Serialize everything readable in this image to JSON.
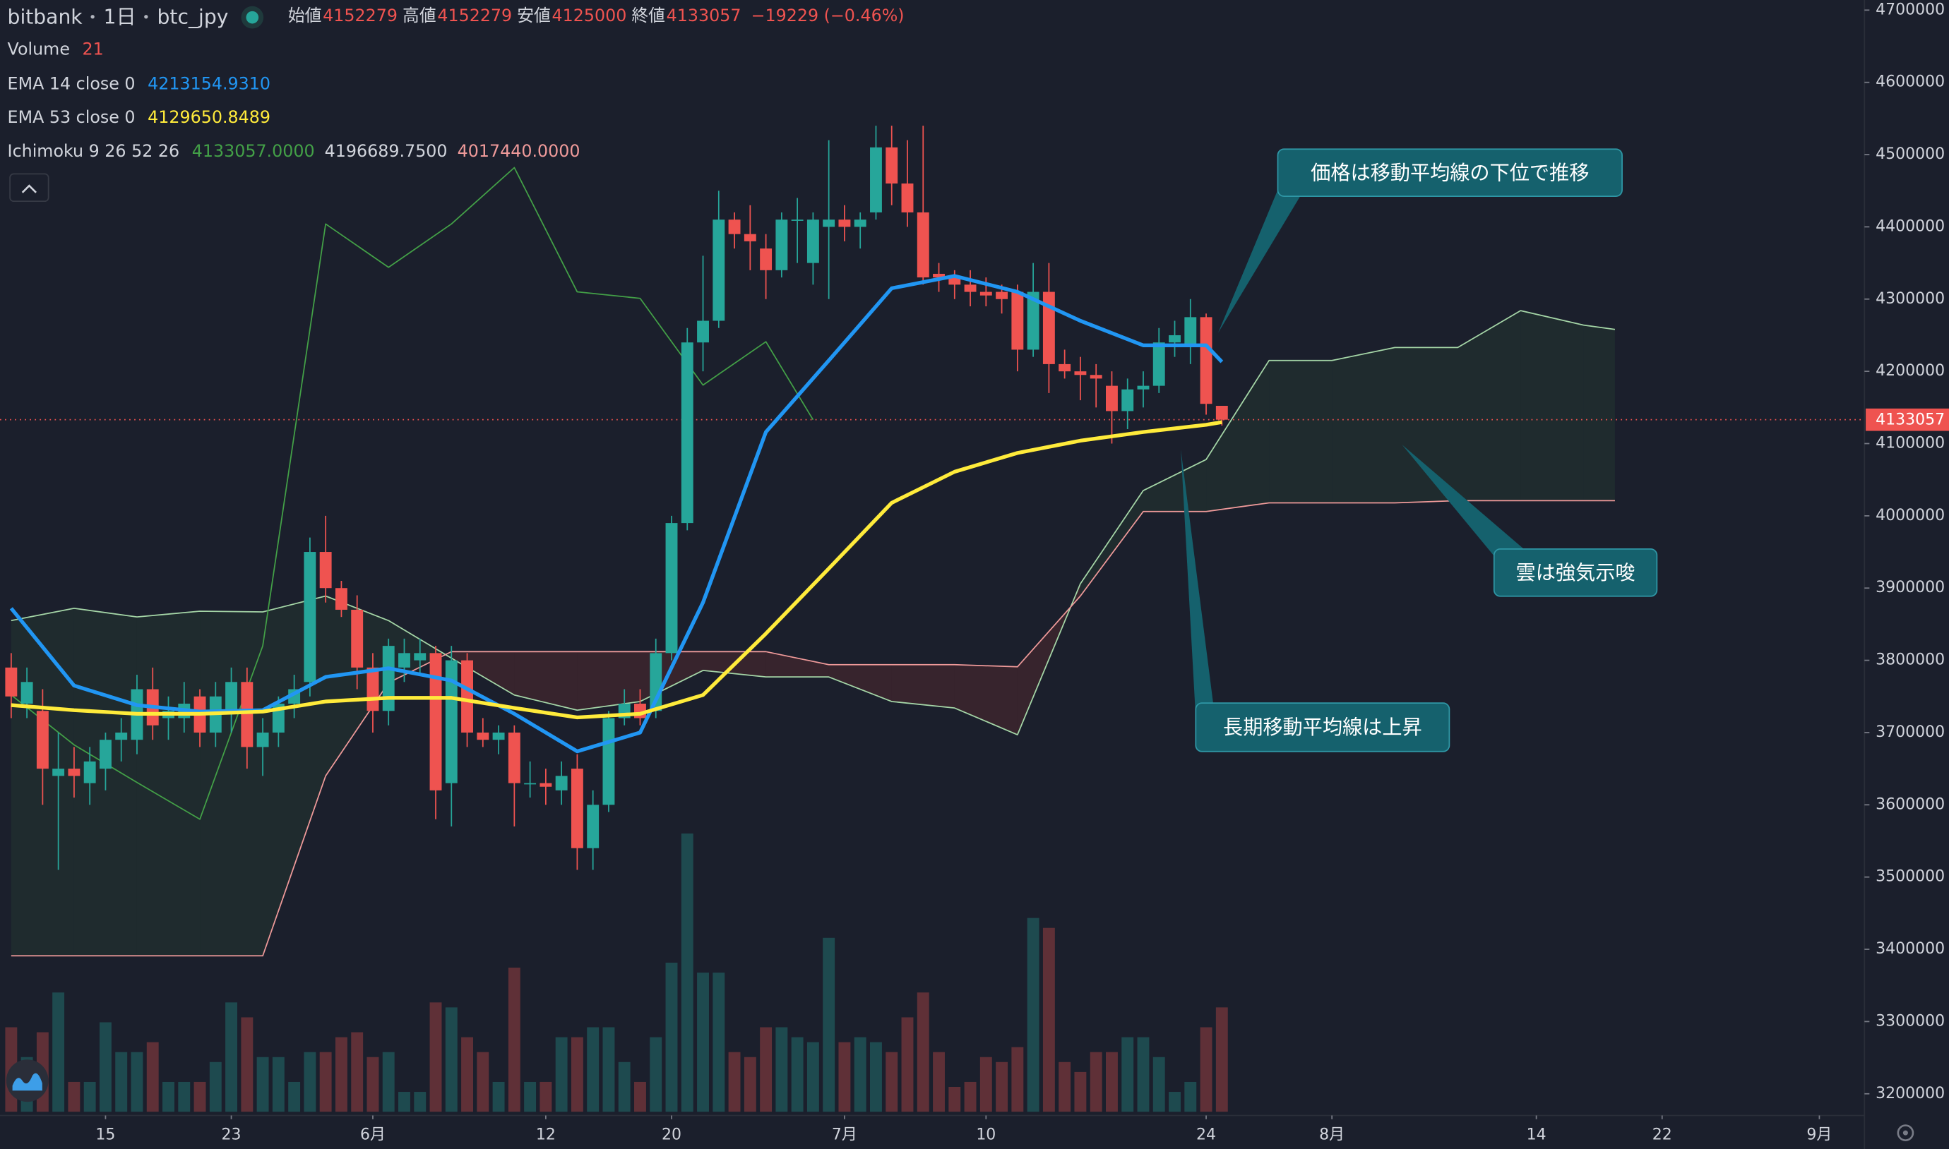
{
  "header": {
    "exchange": "bitbank",
    "interval": "1日",
    "symbol": "btc_jpy",
    "ohlc_labels": [
      "始値",
      "高値",
      "安値",
      "終値"
    ],
    "change": "−19229 (−0.46%)",
    "volume_label": "Volume"
  },
  "chart_data": {
    "type": "candlestick",
    "x": [
      "05-09",
      "05-10",
      "05-11",
      "05-12",
      "05-13",
      "05-14",
      "05-15",
      "05-16",
      "05-17",
      "05-18",
      "05-19",
      "05-20",
      "05-21",
      "05-22",
      "05-23",
      "05-24",
      "05-25",
      "05-26",
      "05-27",
      "05-28",
      "05-29",
      "05-30",
      "05-31",
      "06-01",
      "06-02",
      "06-03",
      "06-04",
      "06-05",
      "06-06",
      "06-07",
      "06-08",
      "06-09",
      "06-10",
      "06-11",
      "06-12",
      "06-13",
      "06-14",
      "06-15",
      "06-16",
      "06-17",
      "06-18",
      "06-19",
      "06-20",
      "06-21",
      "06-22",
      "06-23",
      "06-24",
      "06-25",
      "06-26",
      "06-27",
      "06-28",
      "06-29",
      "06-30",
      "07-01",
      "07-02",
      "07-03",
      "07-04",
      "07-05",
      "07-06",
      "07-07",
      "07-08",
      "07-09",
      "07-10",
      "07-11",
      "07-12",
      "07-13",
      "07-14",
      "07-15",
      "07-16",
      "07-17",
      "07-18",
      "07-19",
      "07-20",
      "07-21",
      "07-22",
      "07-23",
      "07-24",
      "07-25"
    ],
    "open": [
      3790000,
      3740000,
      3730000,
      3640000,
      3650000,
      3630000,
      3650000,
      3690000,
      3690000,
      3760000,
      3720000,
      3720000,
      3750000,
      3700000,
      3730000,
      3770000,
      3680000,
      3700000,
      3740000,
      3770000,
      3950000,
      3900000,
      3870000,
      3790000,
      3730000,
      3790000,
      3800000,
      3810000,
      3630000,
      3800000,
      3700000,
      3690000,
      3700000,
      3630000,
      3630000,
      3620000,
      3650000,
      3540000,
      3600000,
      3720000,
      3740000,
      3730000,
      3810000,
      3990000,
      4240000,
      4270000,
      4410000,
      4390000,
      4370000,
      4340000,
      4410000,
      4350000,
      4400000,
      4410000,
      4400000,
      4420000,
      4510000,
      4460000,
      4420000,
      4335000,
      4330000,
      4320000,
      4310000,
      4310000,
      4310000,
      4230000,
      4310000,
      4210000,
      4200000,
      4195000,
      4180000,
      4145000,
      4175000,
      4180000,
      4240000,
      4235000,
      4275000,
      4152279
    ],
    "high": [
      3810000,
      3790000,
      3760000,
      3700000,
      3680000,
      3680000,
      3700000,
      3720000,
      3780000,
      3790000,
      3750000,
      3770000,
      3760000,
      3770000,
      3790000,
      3790000,
      3720000,
      3750000,
      3780000,
      3970000,
      4000000,
      3910000,
      3890000,
      3810000,
      3830000,
      3830000,
      3830000,
      3820000,
      3820000,
      3810000,
      3720000,
      3710000,
      3710000,
      3660000,
      3650000,
      3660000,
      3670000,
      3620000,
      3730000,
      3760000,
      3760000,
      3830000,
      4000000,
      4260000,
      4360000,
      4450000,
      4420000,
      4430000,
      4390000,
      4420000,
      4440000,
      4420000,
      4520000,
      4430000,
      4420000,
      4540000,
      4540000,
      4520000,
      4540000,
      4350000,
      4340000,
      4340000,
      4330000,
      4320000,
      4320000,
      4350000,
      4350000,
      4230000,
      4220000,
      4210000,
      4200000,
      4190000,
      4200000,
      4260000,
      4270000,
      4300000,
      4280000,
      4152279
    ],
    "low": [
      3720000,
      3720000,
      3600000,
      3510000,
      3610000,
      3600000,
      3620000,
      3660000,
      3670000,
      3690000,
      3690000,
      3700000,
      3680000,
      3680000,
      3700000,
      3650000,
      3640000,
      3680000,
      3720000,
      3750000,
      3880000,
      3860000,
      3760000,
      3700000,
      3710000,
      3770000,
      3780000,
      3580000,
      3570000,
      3680000,
      3680000,
      3670000,
      3570000,
      3610000,
      3600000,
      3600000,
      3510000,
      3510000,
      3590000,
      3710000,
      3710000,
      3720000,
      3800000,
      3980000,
      4200000,
      4260000,
      4370000,
      4340000,
      4300000,
      4330000,
      4350000,
      4320000,
      4300000,
      4380000,
      4370000,
      4410000,
      4430000,
      4400000,
      4320000,
      4310000,
      4300000,
      4290000,
      4290000,
      4280000,
      4200000,
      4220000,
      4170000,
      4190000,
      4160000,
      4150000,
      4100000,
      4120000,
      4150000,
      4170000,
      4220000,
      4210000,
      4140000,
      4125000
    ],
    "close": [
      3750000,
      3770000,
      3650000,
      3650000,
      3640000,
      3660000,
      3690000,
      3700000,
      3760000,
      3710000,
      3730000,
      3740000,
      3700000,
      3750000,
      3770000,
      3680000,
      3700000,
      3740000,
      3760000,
      3950000,
      3900000,
      3870000,
      3790000,
      3730000,
      3820000,
      3810000,
      3810000,
      3620000,
      3800000,
      3700000,
      3690000,
      3700000,
      3630000,
      3630000,
      3625000,
      3640000,
      3540000,
      3600000,
      3720000,
      3740000,
      3720000,
      3810000,
      3990000,
      4240000,
      4270000,
      4410000,
      4390000,
      4380000,
      4340000,
      4410000,
      4410000,
      4410000,
      4410000,
      4400000,
      4410000,
      4510000,
      4460000,
      4420000,
      4330000,
      4330000,
      4320000,
      4310000,
      4305000,
      4300000,
      4230000,
      4310000,
      4210000,
      4200000,
      4195000,
      4190000,
      4145000,
      4175000,
      4180000,
      4240000,
      4250000,
      4275000,
      4155000,
      4133057
    ],
    "volume": [
      17,
      11,
      16,
      24,
      6,
      6,
      18,
      12,
      12,
      14,
      6,
      6,
      6,
      10,
      22,
      19,
      11,
      11,
      6,
      12,
      12,
      15,
      16,
      11,
      12,
      4,
      4,
      22,
      21,
      15,
      12,
      6,
      29,
      6,
      6,
      15,
      15,
      17,
      17,
      10,
      6,
      15,
      30,
      56,
      28,
      28,
      12,
      11,
      17,
      17,
      15,
      14,
      35,
      14,
      15,
      14,
      12,
      19,
      24,
      12,
      5,
      6,
      11,
      10,
      13,
      39,
      37,
      10,
      8,
      12,
      12,
      15,
      15,
      11,
      4,
      6,
      17,
      21
    ],
    "up_color": "#26a69a",
    "down_color": "#ef5350",
    "ema": [
      {
        "name": "EMA 14 close 0",
        "color": "#2196f3",
        "last_label": "4213154.9310",
        "x": [
          "05-09",
          "05-13",
          "05-17",
          "05-21",
          "05-25",
          "05-29",
          "06-02",
          "06-06",
          "06-10",
          "06-14",
          "06-18",
          "06-22",
          "06-26",
          "06-30",
          "07-04",
          "07-08",
          "07-12",
          "07-16",
          "07-20",
          "07-24",
          "07-25"
        ],
        "values": [
          3872000,
          3765000,
          3738000,
          3729000,
          3731000,
          3777000,
          3789000,
          3772000,
          3726000,
          3674000,
          3700000,
          3880000,
          4116000,
          4215000,
          4315000,
          4332000,
          4310000,
          4270000,
          4236000,
          4236000,
          4213154.931
        ]
      },
      {
        "name": "EMA 53 close 0",
        "color": "#ffeb3b",
        "last_label": "4129650.8489",
        "x": [
          "05-09",
          "05-13",
          "05-17",
          "05-21",
          "05-25",
          "05-29",
          "06-02",
          "06-06",
          "06-10",
          "06-14",
          "06-18",
          "06-22",
          "06-26",
          "06-30",
          "07-04",
          "07-08",
          "07-12",
          "07-16",
          "07-20",
          "07-24",
          "07-25"
        ],
        "values": [
          3738000,
          3731000,
          3726000,
          3726000,
          3729000,
          3743000,
          3748000,
          3748000,
          3734000,
          3721000,
          3726000,
          3752000,
          3837000,
          3927000,
          4018000,
          4061000,
          4087000,
          4104000,
          4116000,
          4126000,
          4129650.8489
        ]
      }
    ],
    "ichimoku": {
      "name": "Ichimoku 9 26 52 26",
      "labels": [
        "4133057.0000",
        "4196689.7500",
        "4017440.0000"
      ],
      "lagging": {
        "color": "#43a047",
        "x": [
          "05-09",
          "05-13",
          "05-17",
          "05-21",
          "05-25",
          "05-29",
          "06-02",
          "06-06",
          "06-10",
          "06-14",
          "06-18",
          "06-22",
          "06-26",
          "06-29"
        ],
        "values": [
          3752000,
          3683000,
          3631000,
          3580000,
          3820000,
          4404000,
          4344000,
          4404000,
          4482000,
          4310000,
          4301000,
          4181000,
          4241000,
          4133057
        ]
      },
      "span_x": [
        "05-09",
        "05-13",
        "05-17",
        "05-21",
        "05-25",
        "05-29",
        "06-02",
        "06-06",
        "06-10",
        "06-14",
        "06-18",
        "06-22",
        "06-26",
        "06-30",
        "07-04",
        "07-08",
        "07-12",
        "07-16",
        "07-20",
        "07-24",
        "07-28",
        "08-01",
        "08-05",
        "08-09",
        "08-13",
        "08-17",
        "08-19"
      ],
      "span_a": {
        "color": "#a5d6a7",
        "values": [
          3855000,
          3872000,
          3860000,
          3868000,
          3867000,
          3889000,
          3855000,
          3803000,
          3752000,
          3731000,
          3743000,
          3786000,
          3777000,
          3777000,
          3743000,
          3734000,
          3697000,
          3906000,
          4035000,
          4078000,
          4215000,
          4215000,
          4233000,
          4233000,
          4284000,
          4264000,
          4258000
        ]
      },
      "span_b": {
        "color": "#ef9a9a",
        "values": [
          3391000,
          3391000,
          3391000,
          3391000,
          3391000,
          3640000,
          3769000,
          3812000,
          3812000,
          3812000,
          3812000,
          3812000,
          3812000,
          3794000,
          3794000,
          3794000,
          3791000,
          3889000,
          4006000,
          4006000,
          4018000,
          4018000,
          4018000,
          4021000,
          4021000,
          4021000,
          4021000
        ]
      },
      "up_cloud_color": "rgba(67,160,71,0.10)",
      "down_cloud_color": "rgba(244,67,54,0.13)"
    },
    "annotations": [
      "価格は移動平均線の下位で推移",
      "雲は強気示唆",
      "長期移動平均線は上昇"
    ],
    "annotation_color": "#15616d",
    "xlim": [
      "05-08",
      "09-03"
    ],
    "xticks": [
      {
        "value": "05-15",
        "label": "15"
      },
      {
        "value": "05-23",
        "label": "23"
      },
      {
        "value": "06-01",
        "label": "6月"
      },
      {
        "value": "06-12",
        "label": "12"
      },
      {
        "value": "06-20",
        "label": "20"
      },
      {
        "value": "07-01",
        "label": "7月"
      },
      {
        "value": "07-10",
        "label": "10"
      },
      {
        "value": "07-24",
        "label": "24"
      },
      {
        "value": "08-01",
        "label": "8月"
      },
      {
        "value": "08-14",
        "label": "14"
      },
      {
        "value": "08-22",
        "label": "22"
      },
      {
        "value": "09-01",
        "label": "9月"
      }
    ],
    "ylim": [
      3170000,
      4714000
    ],
    "yticks": [
      3200000,
      3300000,
      3400000,
      3500000,
      3600000,
      3700000,
      3800000,
      3900000,
      4000000,
      4100000,
      4200000,
      4300000,
      4400000,
      4500000,
      4600000,
      4700000
    ],
    "grid": false
  }
}
